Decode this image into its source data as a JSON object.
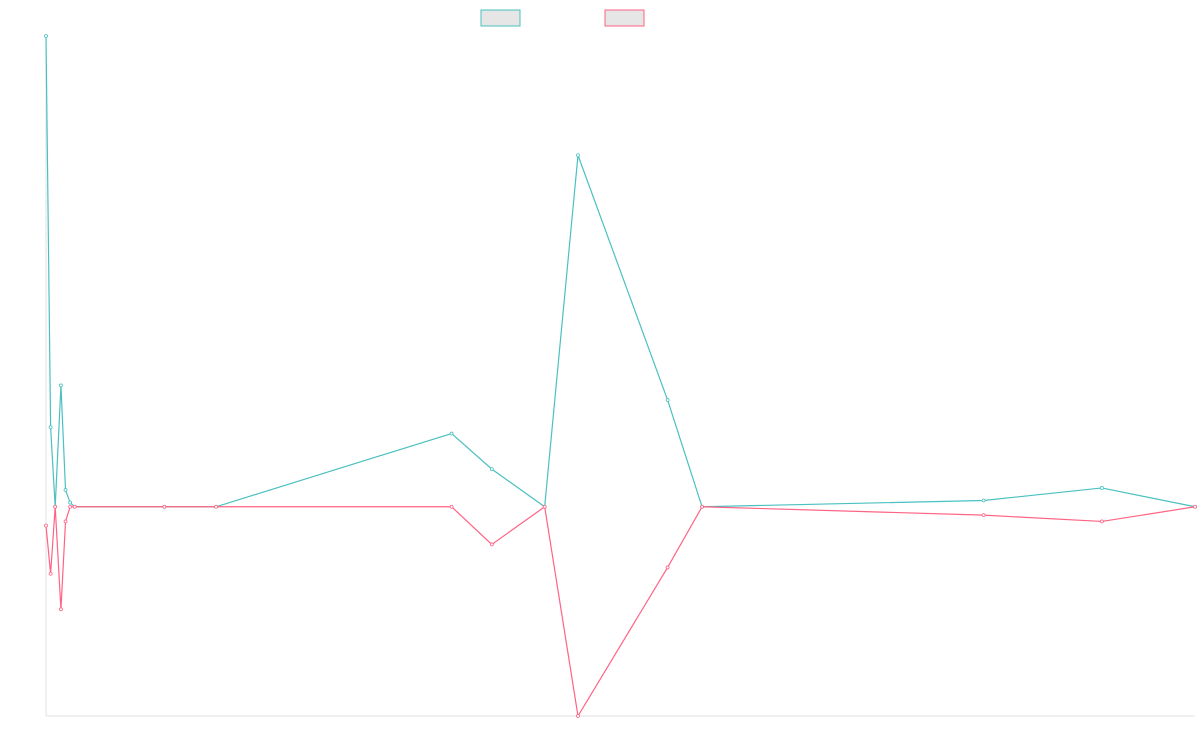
{
  "colors": {
    "background": "#ffffff",
    "axis": "#e0e0e0",
    "legend_fill": "#e6e6e6"
  },
  "chart_data": {
    "type": "line",
    "title": "",
    "xlabel": "",
    "ylabel": "",
    "grid": false,
    "legend_position": "top-center",
    "x_axis_ticks_visible": false,
    "y_axis_ticks_visible": false,
    "xlim": [
      0,
      1000
    ],
    "ylim": [
      -100,
      225
    ],
    "x": [
      0,
      4,
      8,
      13,
      17,
      21,
      25,
      103,
      148,
      353,
      388,
      434,
      463,
      541,
      571,
      816,
      919,
      1000
    ],
    "series": [
      {
        "name": "",
        "color": "#4bc0c0",
        "values": [
          225,
          38,
          0,
          58,
          8,
          2,
          0,
          0,
          0,
          35,
          18,
          0,
          168,
          51,
          0,
          3,
          9,
          0
        ]
      },
      {
        "name": "",
        "color": "#ff6384",
        "values": [
          -9,
          -32,
          0,
          -49,
          -7,
          0,
          0,
          0,
          0,
          0,
          -18,
          0,
          -100,
          -29,
          0,
          -4,
          -7,
          0
        ]
      }
    ]
  }
}
